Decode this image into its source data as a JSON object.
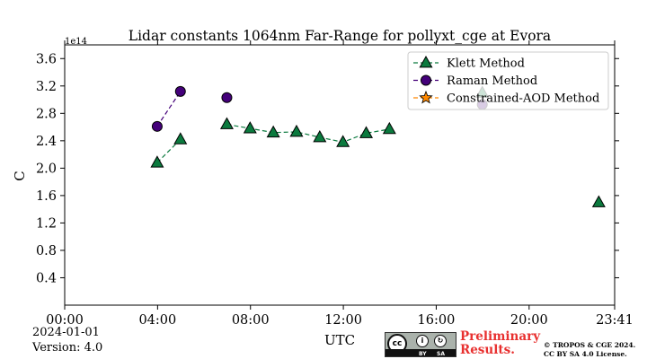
{
  "chart_data": {
    "type": "line",
    "title": "Lidar constants 1064nm Far-Range for pollyxt_cge at Evora",
    "xlabel": "UTC",
    "ylabel": "C",
    "y_offset_text": "1e14",
    "y_scale": 100000000000000.0,
    "xlim": [
      "00:00",
      "23:41"
    ],
    "ylim": [
      0,
      3.8
    ],
    "x_ticks": [
      "00:00",
      "04:00",
      "08:00",
      "12:00",
      "16:00",
      "20:00",
      "23:41"
    ],
    "y_ticks": [
      "0.4",
      "0.8",
      "1.2",
      "1.6",
      "2.0",
      "2.4",
      "2.8",
      "3.2",
      "3.6"
    ],
    "grid": false,
    "legend_position": "upper right",
    "series": [
      {
        "name": "Klett Method",
        "marker": "triangle",
        "color": "#0b7a3e",
        "x": [
          "03:59",
          "04:59",
          "06:59",
          "07:59",
          "08:59",
          "09:59",
          "10:59",
          "11:59",
          "12:59",
          "13:59",
          "17:59",
          "23:00"
        ],
        "y": [
          2.08,
          2.42,
          2.64,
          2.58,
          2.52,
          2.53,
          2.45,
          2.38,
          2.51,
          2.57,
          3.1,
          1.5
        ],
        "connected_segments": [
          [
            0,
            1
          ],
          [
            2,
            9
          ]
        ]
      },
      {
        "name": "Raman Method",
        "marker": "circle",
        "color": "#44007a",
        "x": [
          "03:59",
          "04:59",
          "06:59",
          "17:59"
        ],
        "y": [
          2.61,
          3.12,
          3.03,
          2.93
        ],
        "connected_segments": [
          [
            0,
            1
          ]
        ]
      },
      {
        "name": "Constrained-AOD Method",
        "marker": "star",
        "color": "#ff8800",
        "x": [],
        "y": [],
        "connected_segments": []
      }
    ]
  },
  "footer": {
    "date": "2024-01-01",
    "version": "Version: 4.0",
    "preliminary": "Preliminary Results.",
    "copyright_line1": "© TROPOS & CGE 2024.",
    "copyright_line2": "CC BY SA 4.0 License.",
    "license_badge": {
      "cc": "cc",
      "by": "BY",
      "sa": "SA"
    }
  }
}
